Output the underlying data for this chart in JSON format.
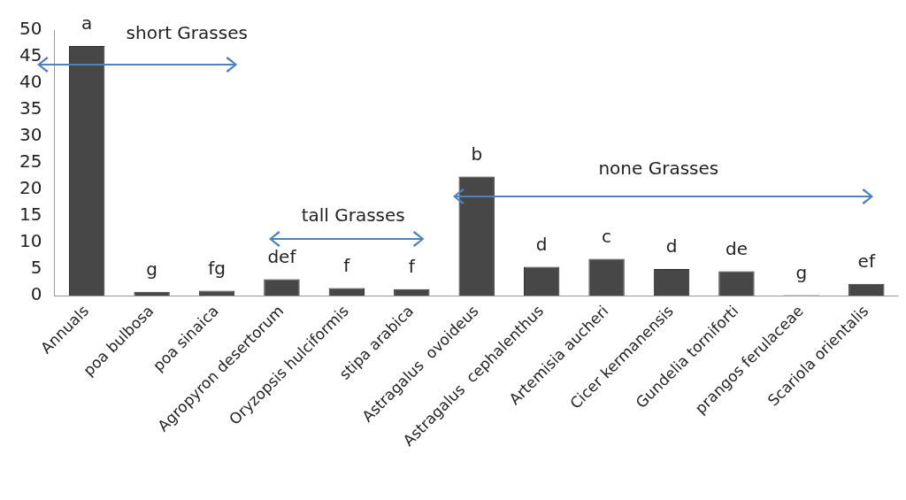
{
  "chart_data": {
    "type": "bar",
    "categories": [
      "Annuals",
      "poa bulbosa",
      "poa sinaica",
      "Agropyron desertorum",
      "Oryzopsis hulciformis",
      "stipa arabica",
      "Astragalus  ovoideus",
      "Astragalus  cephalenthus",
      "Artemisia aucheri",
      "Cicer kermanensis",
      "Gundelia torniforti",
      "prangos ferulaceae",
      "Scariola orientalis"
    ],
    "values": [
      47,
      0.7,
      0.9,
      3.1,
      1.4,
      1.2,
      22.4,
      5.4,
      6.9,
      5.0,
      4.6,
      0.1,
      2.2
    ],
    "value_labels": [
      "a",
      "g",
      "fg",
      "def",
      "f",
      "f",
      "b",
      "d",
      "c",
      "d",
      "de",
      "g",
      "ef"
    ],
    "color": "#474747",
    "ylim": [
      0,
      50
    ],
    "yticks": [
      0,
      5,
      10,
      15,
      20,
      25,
      30,
      35,
      40,
      45,
      50
    ],
    "grid": false,
    "legend": false,
    "annotations": [
      "short Grasses",
      "tall Grasses",
      "none Grasses"
    ]
  }
}
